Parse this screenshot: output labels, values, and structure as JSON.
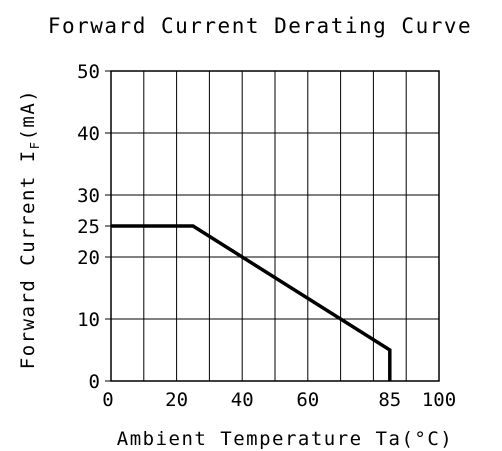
{
  "chart_data": {
    "type": "line",
    "title": "Forward Current Derating Curve",
    "xlabel": "Ambient Temperature Ta(°C)",
    "ylabel_main": "Forward Current I",
    "ylabel_sub": "F",
    "ylabel_unit": "(mA)",
    "xlim": [
      0,
      100
    ],
    "ylim": [
      0,
      50
    ],
    "x_ticks": [
      {
        "value": 0,
        "label": "0"
      },
      {
        "value": 20,
        "label": "20"
      },
      {
        "value": 40,
        "label": "40"
      },
      {
        "value": 60,
        "label": "60"
      },
      {
        "value": 85,
        "label": "85"
      },
      {
        "value": 100,
        "label": "100"
      }
    ],
    "y_ticks": [
      {
        "value": 0,
        "label": "0"
      },
      {
        "value": 10,
        "label": "10"
      },
      {
        "value": 20,
        "label": "20"
      },
      {
        "value": 25,
        "label": "25"
      },
      {
        "value": 30,
        "label": "30"
      },
      {
        "value": 40,
        "label": "40"
      },
      {
        "value": 50,
        "label": "50"
      }
    ],
    "grid_x": [
      0,
      10,
      20,
      30,
      40,
      50,
      60,
      70,
      80,
      90,
      100
    ],
    "grid_y": [
      0,
      10,
      20,
      30,
      40,
      50
    ],
    "grid": true,
    "series": [
      {
        "x": [
          0,
          25,
          85,
          85
        ],
        "y": [
          25,
          25,
          5,
          0
        ]
      }
    ]
  }
}
